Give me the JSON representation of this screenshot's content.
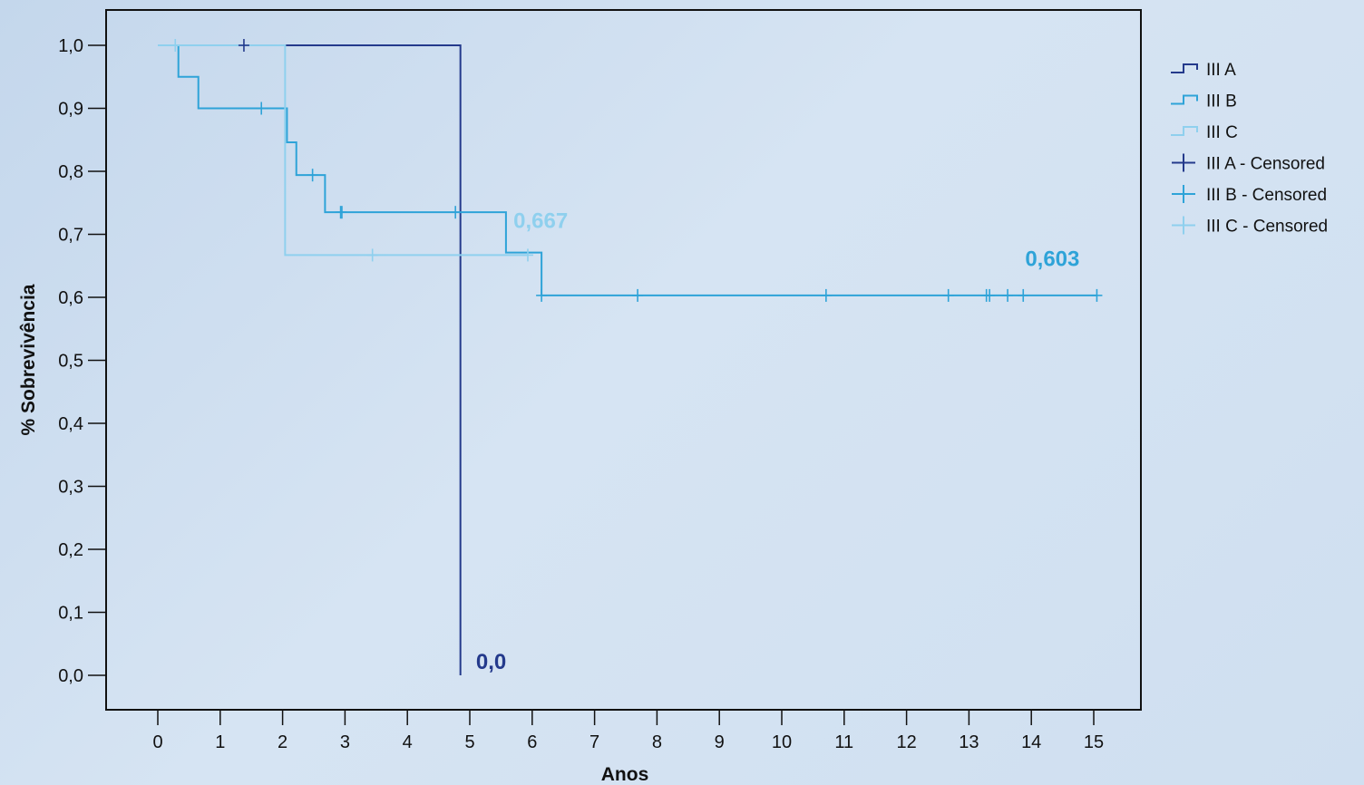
{
  "chart_data": {
    "type": "line",
    "subtype": "kaplan-meier",
    "xlabel": "Anos",
    "ylabel": "% Sobrevivência",
    "xlim": [
      0,
      15
    ],
    "ylim": [
      0,
      1
    ],
    "x_ticks": [
      "0",
      "1",
      "2",
      "3",
      "4",
      "5",
      "6",
      "7",
      "8",
      "9",
      "10",
      "11",
      "12",
      "13",
      "14",
      "15"
    ],
    "y_ticks": [
      "0,0",
      "0,1",
      "0,2",
      "0,3",
      "0,4",
      "0,5",
      "0,6",
      "0,7",
      "0,8",
      "0,9",
      "1,0"
    ],
    "grid": false,
    "legend_position": "right",
    "series": [
      {
        "name": "III A",
        "color": "#243a8c",
        "steps": [
          [
            0,
            1.0
          ],
          [
            4.85,
            0.0
          ]
        ],
        "end_x": 4.85,
        "censored": [
          [
            1.38,
            1.0
          ]
        ]
      },
      {
        "name": "III B",
        "color": "#2ea3d8",
        "steps": [
          [
            0,
            1.0
          ],
          [
            0.33,
            0.95
          ],
          [
            0.65,
            0.9
          ],
          [
            2.07,
            0.846
          ],
          [
            2.22,
            0.794
          ],
          [
            2.68,
            0.735
          ],
          [
            5.58,
            0.671
          ],
          [
            6.15,
            0.603
          ]
        ],
        "end_x": 15.05,
        "censored": [
          [
            1.66,
            0.9
          ],
          [
            2.48,
            0.794
          ],
          [
            2.93,
            0.735
          ],
          [
            2.95,
            0.735
          ],
          [
            4.77,
            0.735
          ],
          [
            6.15,
            0.603
          ],
          [
            7.69,
            0.603
          ],
          [
            10.71,
            0.603
          ],
          [
            12.67,
            0.603
          ],
          [
            13.28,
            0.603
          ],
          [
            13.33,
            0.603
          ],
          [
            13.62,
            0.603
          ],
          [
            13.87,
            0.603
          ],
          [
            15.05,
            0.603
          ]
        ]
      },
      {
        "name": "III C",
        "color": "#8fd0ee",
        "steps": [
          [
            0,
            1.0
          ],
          [
            2.04,
            0.667
          ]
        ],
        "end_x": 5.93,
        "censored": [
          [
            0.28,
            1.0
          ],
          [
            3.44,
            0.667
          ],
          [
            5.93,
            0.667
          ]
        ]
      }
    ],
    "annotations": [
      {
        "text": "0,667",
        "x": 5.7,
        "y": 0.71,
        "color": "#8fd0ee"
      },
      {
        "text": "0,603",
        "x": 13.9,
        "y": 0.65,
        "color": "#2ea3d8"
      },
      {
        "text": "0,0",
        "x": 5.1,
        "y": 0.01,
        "color": "#243a8c"
      }
    ],
    "legend": [
      {
        "label": "III A",
        "color": "#243a8c",
        "marker": "step"
      },
      {
        "label": "III B",
        "color": "#2ea3d8",
        "marker": "step"
      },
      {
        "label": "III C",
        "color": "#8fd0ee",
        "marker": "step"
      },
      {
        "label": "III A - Censored",
        "color": "#243a8c",
        "marker": "plus"
      },
      {
        "label": "III B - Censored",
        "color": "#2ea3d8",
        "marker": "plus"
      },
      {
        "label": "III C - Censored",
        "color": "#8fd0ee",
        "marker": "plus"
      }
    ]
  }
}
